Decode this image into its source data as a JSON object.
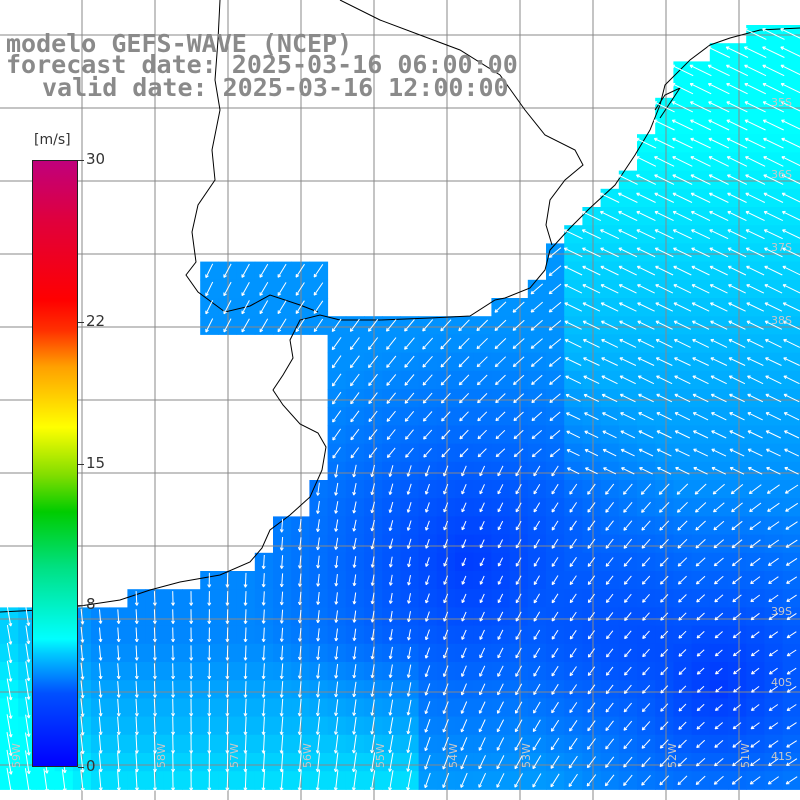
{
  "title": {
    "line1": "modelo GEFS-WAVE (NCEP)",
    "line2": "forecast date: 2025-03-16 06:00:00",
    "line3": "valid date: 2025-03-16 12:00:00"
  },
  "colorbar": {
    "unit": "[m/s]",
    "ticks": [
      "30",
      "22",
      "15",
      "8",
      "0"
    ],
    "tick_values": [
      30,
      22,
      15,
      8,
      0
    ],
    "range": [
      0,
      30
    ],
    "colors": [
      "#0000ff",
      "#00c8ff",
      "#00ffff",
      "#00cc00",
      "#ffff00",
      "#ff0000",
      "#c0007c"
    ]
  },
  "map": {
    "lat_labels": [
      "35S",
      "36S",
      "37S",
      "38S",
      "39S",
      "40S",
      "41S"
    ],
    "lon_labels": [
      "59W",
      "58W",
      "57W",
      "56W",
      "55W",
      "54W",
      "53W",
      "52W",
      "51W"
    ],
    "land_color": "#ffffff",
    "grid_color": "#888888",
    "coast_color": "#000000",
    "arrow_color": "#ffffff"
  }
}
